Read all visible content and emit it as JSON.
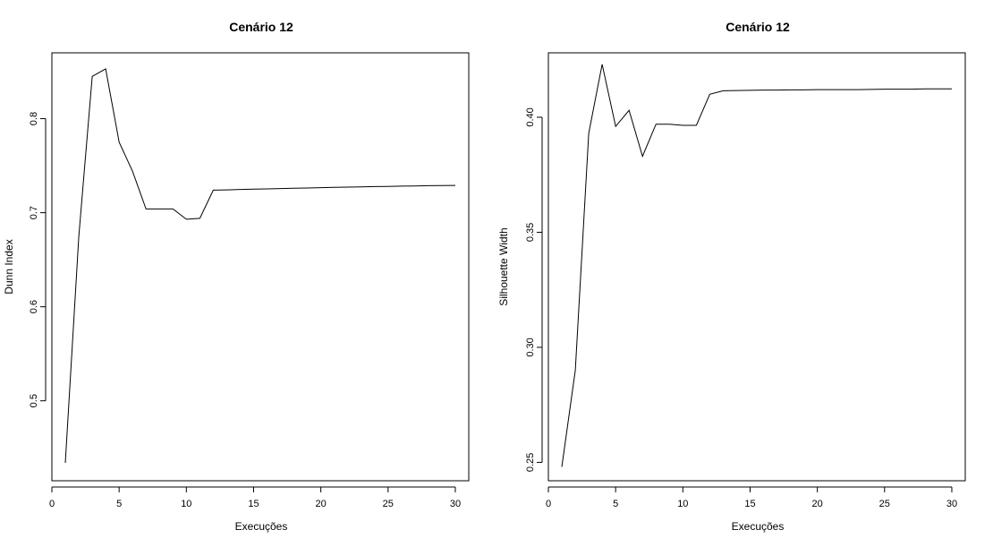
{
  "chart_data": [
    {
      "type": "line",
      "title": "Cenário 12",
      "xlabel": "Execuções",
      "ylabel": "Dunn Index",
      "xlim": [
        0,
        31
      ],
      "ylim": [
        0.415,
        0.87
      ],
      "x_ticks": [
        0,
        5,
        10,
        15,
        20,
        25,
        30
      ],
      "y_ticks": [
        0.5,
        0.6,
        0.7,
        0.8
      ],
      "x_tick_labels": [
        "0",
        "5",
        "10",
        "15",
        "20",
        "25",
        "30"
      ],
      "y_tick_labels": [
        "0.5",
        "0.6",
        "0.7",
        "0.8"
      ],
      "grid": false,
      "x": [
        1,
        2,
        3,
        4,
        5,
        6,
        7,
        8,
        9,
        10,
        11,
        12,
        13,
        14,
        15,
        16,
        17,
        18,
        19,
        20,
        21,
        22,
        23,
        24,
        25,
        26,
        27,
        28,
        29,
        30
      ],
      "y": [
        0.434,
        0.675,
        0.845,
        0.853,
        0.775,
        0.744,
        0.704,
        0.704,
        0.704,
        0.693,
        0.694,
        0.724,
        0.7243,
        0.7247,
        0.725,
        0.7253,
        0.7257,
        0.726,
        0.7263,
        0.7266,
        0.727,
        0.7272,
        0.7275,
        0.7278,
        0.728,
        0.7283,
        0.7285,
        0.7287,
        0.7289,
        0.729
      ]
    },
    {
      "type": "line",
      "title": "Cenário 12",
      "xlabel": "Execuções",
      "ylabel": "Silhouette Width",
      "xlim": [
        0,
        31
      ],
      "ylim": [
        0.242,
        0.428
      ],
      "x_ticks": [
        0,
        5,
        10,
        15,
        20,
        25,
        30
      ],
      "y_ticks": [
        0.25,
        0.3,
        0.35,
        0.4
      ],
      "x_tick_labels": [
        "0",
        "5",
        "10",
        "15",
        "20",
        "25",
        "30"
      ],
      "y_tick_labels": [
        "0.25",
        "0.30",
        "0.35",
        "0.40"
      ],
      "grid": false,
      "x": [
        1,
        2,
        3,
        4,
        5,
        6,
        7,
        8,
        9,
        10,
        11,
        12,
        13,
        14,
        15,
        16,
        17,
        18,
        19,
        20,
        21,
        22,
        23,
        24,
        25,
        26,
        27,
        28,
        29,
        30
      ],
      "y": [
        0.248,
        0.29,
        0.393,
        0.423,
        0.396,
        0.403,
        0.383,
        0.397,
        0.397,
        0.3965,
        0.3965,
        0.41,
        0.4115,
        0.4116,
        0.4117,
        0.4118,
        0.4118,
        0.4119,
        0.4119,
        0.412,
        0.412,
        0.412,
        0.412,
        0.4121,
        0.4122,
        0.4122,
        0.4122,
        0.4123,
        0.4123,
        0.4123
      ]
    }
  ]
}
